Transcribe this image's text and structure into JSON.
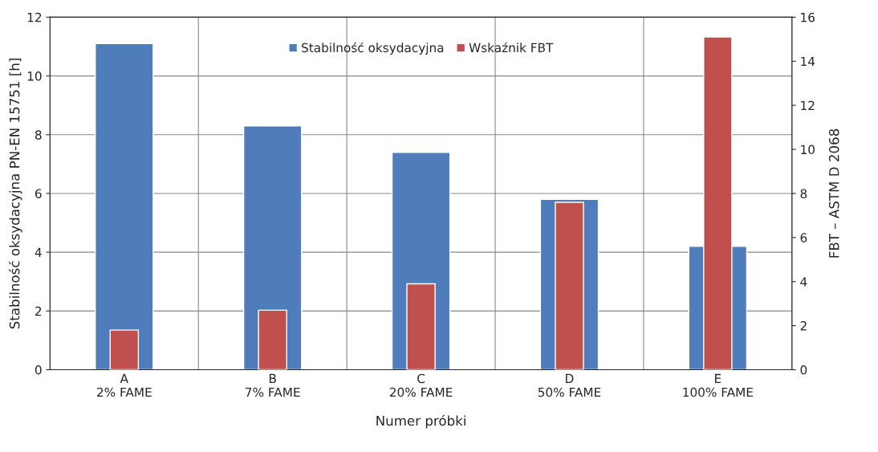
{
  "chart_data": {
    "type": "bar",
    "xlabel": "Numer próbki",
    "ylabel": "Stabilność oksydacyjna PN-EN 15751 [h]",
    "y2label": "FBT – ASTM D 2068",
    "categories": [
      "A\n2% FAME",
      "B\n7% FAME",
      "C\n20% FAME",
      "D\n50% FAME",
      "E\n100% FAME"
    ],
    "series": [
      {
        "name": "Stabilność oksydacyjna",
        "color": "#4f7cba",
        "values": [
          11.1,
          8.3,
          7.4,
          5.8,
          4.2
        ]
      },
      {
        "name": "Wskaźnik FBT",
        "color": "#c0504d",
        "axis": "y2",
        "values": [
          1.8,
          2.7,
          3.9,
          7.6,
          15.1
        ]
      }
    ],
    "ylim": [
      0,
      12
    ],
    "yticks": [
      0,
      2,
      4,
      6,
      8,
      10,
      12
    ],
    "y2lim": [
      0,
      16
    ],
    "y2ticks": [
      0,
      2,
      4,
      6,
      8,
      10,
      12,
      14,
      16
    ],
    "grid": true,
    "legend": "top"
  }
}
